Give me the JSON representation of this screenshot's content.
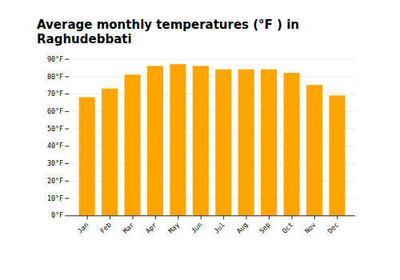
{
  "chart_data": {
    "type": "bar",
    "title": "Average monthly temperatures (°F ) in Raghudebbati",
    "categories": [
      "Jan",
      "Feb",
      "Mar",
      "Apr",
      "May",
      "Jun",
      "Jul",
      "Aug",
      "Sep",
      "Oct",
      "Nov",
      "Dec"
    ],
    "values": [
      68,
      73,
      81,
      86,
      87,
      86,
      84,
      84,
      84,
      82,
      75,
      69
    ],
    "color": "#FFA500",
    "ylim": [
      0,
      90
    ],
    "yticks": [
      {
        "value": 0,
        "label": "0°F"
      },
      {
        "value": 10,
        "label": "10°F"
      },
      {
        "value": 20,
        "label": "20°F"
      },
      {
        "value": 30,
        "label": "30°F"
      },
      {
        "value": 40,
        "label": "40°F"
      },
      {
        "value": 50,
        "label": "50°F"
      },
      {
        "value": 60,
        "label": "60°F"
      },
      {
        "value": 70,
        "label": "70°F"
      },
      {
        "value": 80,
        "label": "80°F"
      },
      {
        "value": 90,
        "label": "90°F"
      }
    ],
    "grid": true
  }
}
